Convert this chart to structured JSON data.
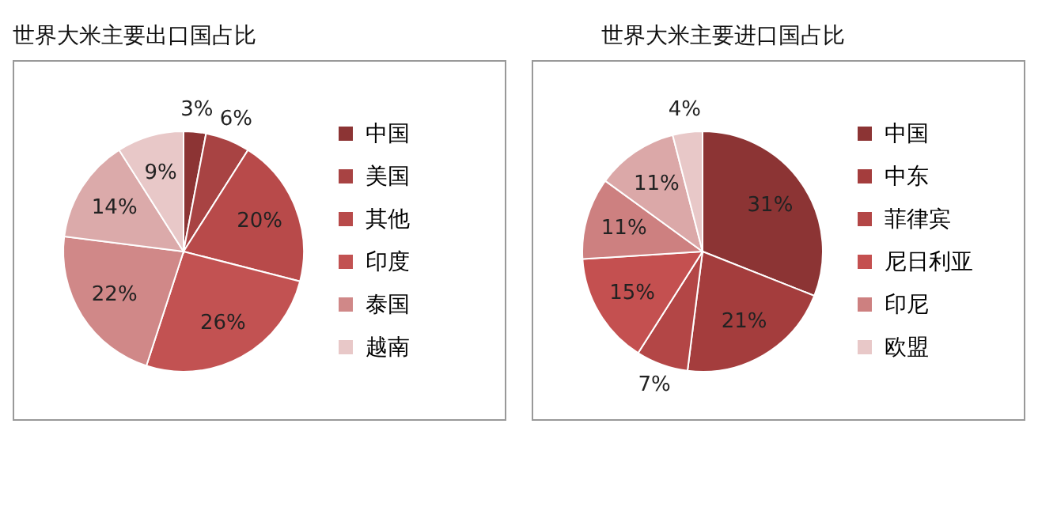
{
  "chart_data": [
    {
      "type": "pie",
      "title": "世界大米主要出口国占比",
      "categories": [
        "中国",
        "美国",
        "其他",
        "印度",
        "泰国",
        null,
        "越南"
      ],
      "values": [
        3,
        6,
        20,
        26,
        22,
        14,
        9
      ],
      "value_labels": [
        "3%",
        "6%",
        "20%",
        "26%",
        "22%",
        "14%",
        "9%"
      ],
      "colors": [
        "#8c3434",
        "#a84343",
        "#b84a4a",
        "#c25252",
        "#d08888",
        "#dbaaaa",
        "#e8c8c8"
      ],
      "legend": "right"
    },
    {
      "type": "pie",
      "title": "世界大米主要进口国占比",
      "categories": [
        "中国",
        "中东",
        "菲律宾",
        "尼日利亚",
        "印尼",
        null,
        "欧盟"
      ],
      "values": [
        31,
        21,
        7,
        15,
        11,
        11,
        4
      ],
      "value_labels": [
        "31%",
        "21%",
        "7%",
        "15%",
        "11%",
        "11%",
        "4%"
      ],
      "colors": [
        "#8c3434",
        "#a43d3d",
        "#b34646",
        "#c45050",
        "#cd8080",
        "#dba8a8",
        "#e8c8c8"
      ],
      "legend": "right"
    }
  ]
}
